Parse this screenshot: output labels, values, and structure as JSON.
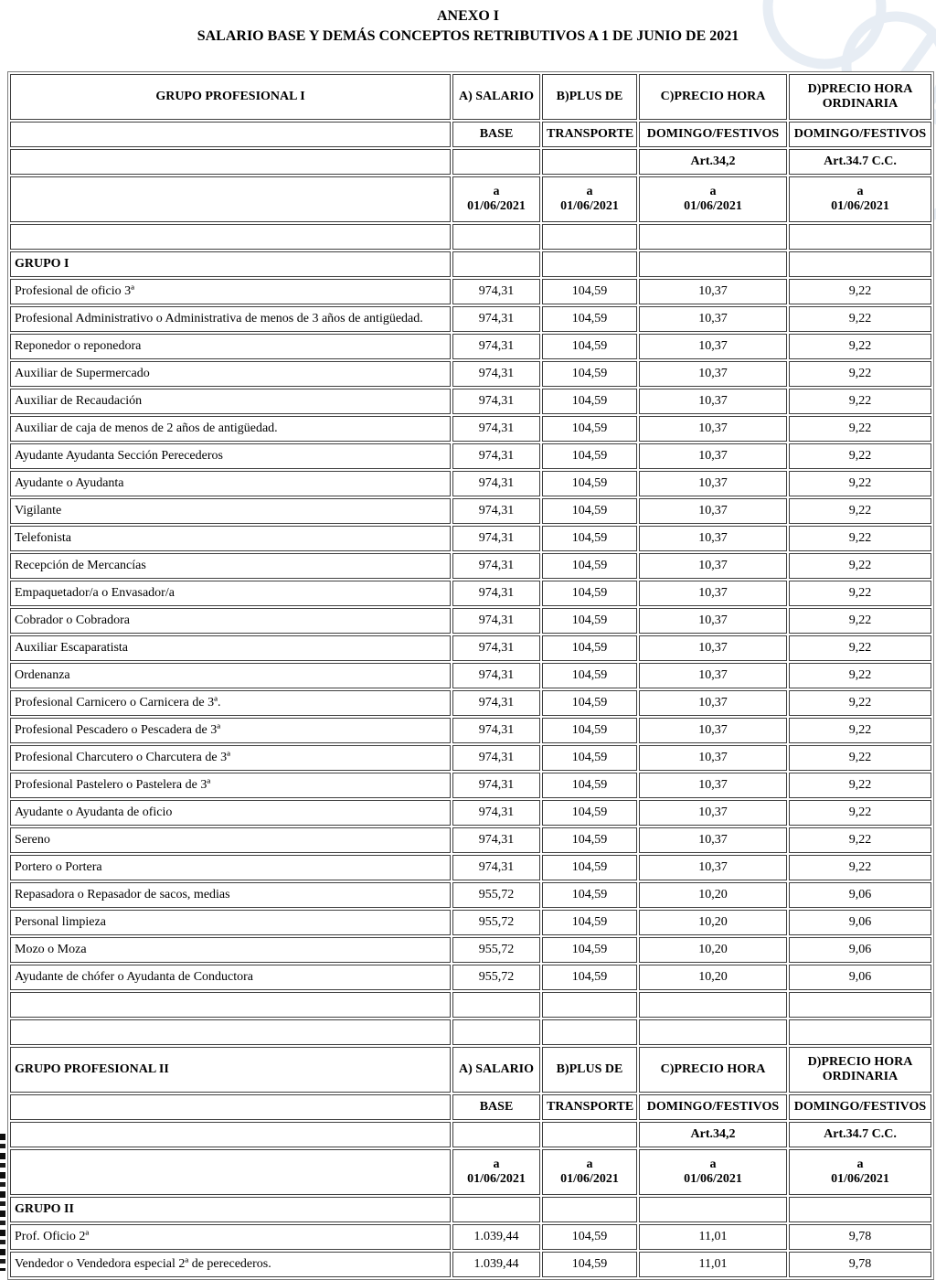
{
  "page": {
    "title": "ANEXO I",
    "subtitle": "SALARIO BASE Y DEMÁS CONCEPTOS RETRIBUTIVOS A 1 DE JUNIO DE 2021"
  },
  "decor": {
    "watermark_icon": "circles-watermark",
    "watermark_color": "#e7edf4",
    "scan_artifact": "left-edge-scan-marks"
  },
  "columns": {
    "salario_line1": "A) SALARIO",
    "salario_line2": "BASE",
    "plus_line1": "B)PLUS DE",
    "plus_line2": "TRANSPORTE",
    "festivos_line1": "C)PRECIO HORA",
    "festivos_line2": "DOMINGO/FESTIVOS",
    "festivos_art": "Art.34,2",
    "ordinaria_line1": "D)PRECIO HORA",
    "ordinaria_line2": "ORDINARIA",
    "ordinaria_line3": "DOMINGO/FESTIVOS",
    "ordinaria_art": "Art.34.7 C.C.",
    "effective_line1": "a",
    "effective_line2": "01/06/2021"
  },
  "sections": [
    {
      "header_label": "GRUPO PROFESIONAL I",
      "group_label": "GRUPO I",
      "rows": [
        {
          "label": "Profesional de oficio 3ª",
          "salario_base": "974,31",
          "plus_transporte": "104,59",
          "precio_hora_festivos": "10,37",
          "precio_hora_ordinaria": "9,22"
        },
        {
          "label": "Profesional Administrativo o Administrativa de menos de 3 años de antigüedad.",
          "salario_base": "974,31",
          "plus_transporte": "104,59",
          "precio_hora_festivos": "10,37",
          "precio_hora_ordinaria": "9,22"
        },
        {
          "label": "Reponedor o reponedora",
          "salario_base": "974,31",
          "plus_transporte": "104,59",
          "precio_hora_festivos": "10,37",
          "precio_hora_ordinaria": "9,22"
        },
        {
          "label": "Auxiliar de Supermercado",
          "salario_base": "974,31",
          "plus_transporte": "104,59",
          "precio_hora_festivos": "10,37",
          "precio_hora_ordinaria": "9,22"
        },
        {
          "label": "Auxiliar de Recaudación",
          "salario_base": "974,31",
          "plus_transporte": "104,59",
          "precio_hora_festivos": "10,37",
          "precio_hora_ordinaria": "9,22"
        },
        {
          "label": "Auxiliar de caja de menos de 2 años de antigüedad.",
          "salario_base": "974,31",
          "plus_transporte": "104,59",
          "precio_hora_festivos": "10,37",
          "precio_hora_ordinaria": "9,22"
        },
        {
          "label": "Ayudante Ayudanta Sección Perecederos",
          "salario_base": "974,31",
          "plus_transporte": "104,59",
          "precio_hora_festivos": "10,37",
          "precio_hora_ordinaria": "9,22"
        },
        {
          "label": "Ayudante o Ayudanta",
          "salario_base": "974,31",
          "plus_transporte": "104,59",
          "precio_hora_festivos": "10,37",
          "precio_hora_ordinaria": "9,22"
        },
        {
          "label": "Vigilante",
          "salario_base": "974,31",
          "plus_transporte": "104,59",
          "precio_hora_festivos": "10,37",
          "precio_hora_ordinaria": "9,22"
        },
        {
          "label": "Telefonista",
          "salario_base": "974,31",
          "plus_transporte": "104,59",
          "precio_hora_festivos": "10,37",
          "precio_hora_ordinaria": "9,22"
        },
        {
          "label": "Recepción de Mercancías",
          "salario_base": "974,31",
          "plus_transporte": "104,59",
          "precio_hora_festivos": "10,37",
          "precio_hora_ordinaria": "9,22"
        },
        {
          "label": "Empaquetador/a o Envasador/a",
          "salario_base": "974,31",
          "plus_transporte": "104,59",
          "precio_hora_festivos": "10,37",
          "precio_hora_ordinaria": "9,22"
        },
        {
          "label": "Cobrador o Cobradora",
          "salario_base": "974,31",
          "plus_transporte": "104,59",
          "precio_hora_festivos": "10,37",
          "precio_hora_ordinaria": "9,22"
        },
        {
          "label": "Auxiliar Escaparatista",
          "salario_base": "974,31",
          "plus_transporte": "104,59",
          "precio_hora_festivos": "10,37",
          "precio_hora_ordinaria": "9,22"
        },
        {
          "label": "Ordenanza",
          "salario_base": "974,31",
          "plus_transporte": "104,59",
          "precio_hora_festivos": "10,37",
          "precio_hora_ordinaria": "9,22"
        },
        {
          "label": "Profesional Carnicero o Carnicera de 3ª.",
          "salario_base": "974,31",
          "plus_transporte": "104,59",
          "precio_hora_festivos": "10,37",
          "precio_hora_ordinaria": "9,22"
        },
        {
          "label": "Profesional Pescadero o Pescadera de 3ª",
          "salario_base": "974,31",
          "plus_transporte": "104,59",
          "precio_hora_festivos": "10,37",
          "precio_hora_ordinaria": "9,22"
        },
        {
          "label": "Profesional Charcutero o Charcutera de 3ª",
          "salario_base": "974,31",
          "plus_transporte": "104,59",
          "precio_hora_festivos": "10,37",
          "precio_hora_ordinaria": "9,22"
        },
        {
          "label": "Profesional Pastelero o Pastelera de 3ª",
          "salario_base": "974,31",
          "plus_transporte": "104,59",
          "precio_hora_festivos": "10,37",
          "precio_hora_ordinaria": "9,22"
        },
        {
          "label": "Ayudante o Ayudanta de oficio",
          "salario_base": "974,31",
          "plus_transporte": "104,59",
          "precio_hora_festivos": "10,37",
          "precio_hora_ordinaria": "9,22"
        },
        {
          "label": "Sereno",
          "salario_base": "974,31",
          "plus_transporte": "104,59",
          "precio_hora_festivos": "10,37",
          "precio_hora_ordinaria": "9,22"
        },
        {
          "label": "Portero o Portera",
          "salario_base": "974,31",
          "plus_transporte": "104,59",
          "precio_hora_festivos": "10,37",
          "precio_hora_ordinaria": "9,22"
        },
        {
          "label": "Repasadora o Repasador de sacos, medias",
          "salario_base": "955,72",
          "plus_transporte": "104,59",
          "precio_hora_festivos": "10,20",
          "precio_hora_ordinaria": "9,06"
        },
        {
          "label": "Personal limpieza",
          "salario_base": "955,72",
          "plus_transporte": "104,59",
          "precio_hora_festivos": "10,20",
          "precio_hora_ordinaria": "9,06"
        },
        {
          "label": "Mozo o Moza",
          "salario_base": "955,72",
          "plus_transporte": "104,59",
          "precio_hora_festivos": "10,20",
          "precio_hora_ordinaria": "9,06"
        },
        {
          "label": "Ayudante de chófer o Ayudanta de Conductora",
          "salario_base": "955,72",
          "plus_transporte": "104,59",
          "precio_hora_festivos": "10,20",
          "precio_hora_ordinaria": "9,06"
        }
      ]
    },
    {
      "header_label": "GRUPO PROFESIONAL II",
      "group_label": "GRUPO II",
      "rows": [
        {
          "label": "Prof. Oficio 2ª",
          "salario_base": "1.039,44",
          "plus_transporte": "104,59",
          "precio_hora_festivos": "11,01",
          "precio_hora_ordinaria": "9,78"
        },
        {
          "label": "Vendedor o Vendedora especial 2ª de perecederos.",
          "salario_base": "1.039,44",
          "plus_transporte": "104,59",
          "precio_hora_festivos": "11,01",
          "precio_hora_ordinaria": "9,78"
        }
      ]
    }
  ]
}
